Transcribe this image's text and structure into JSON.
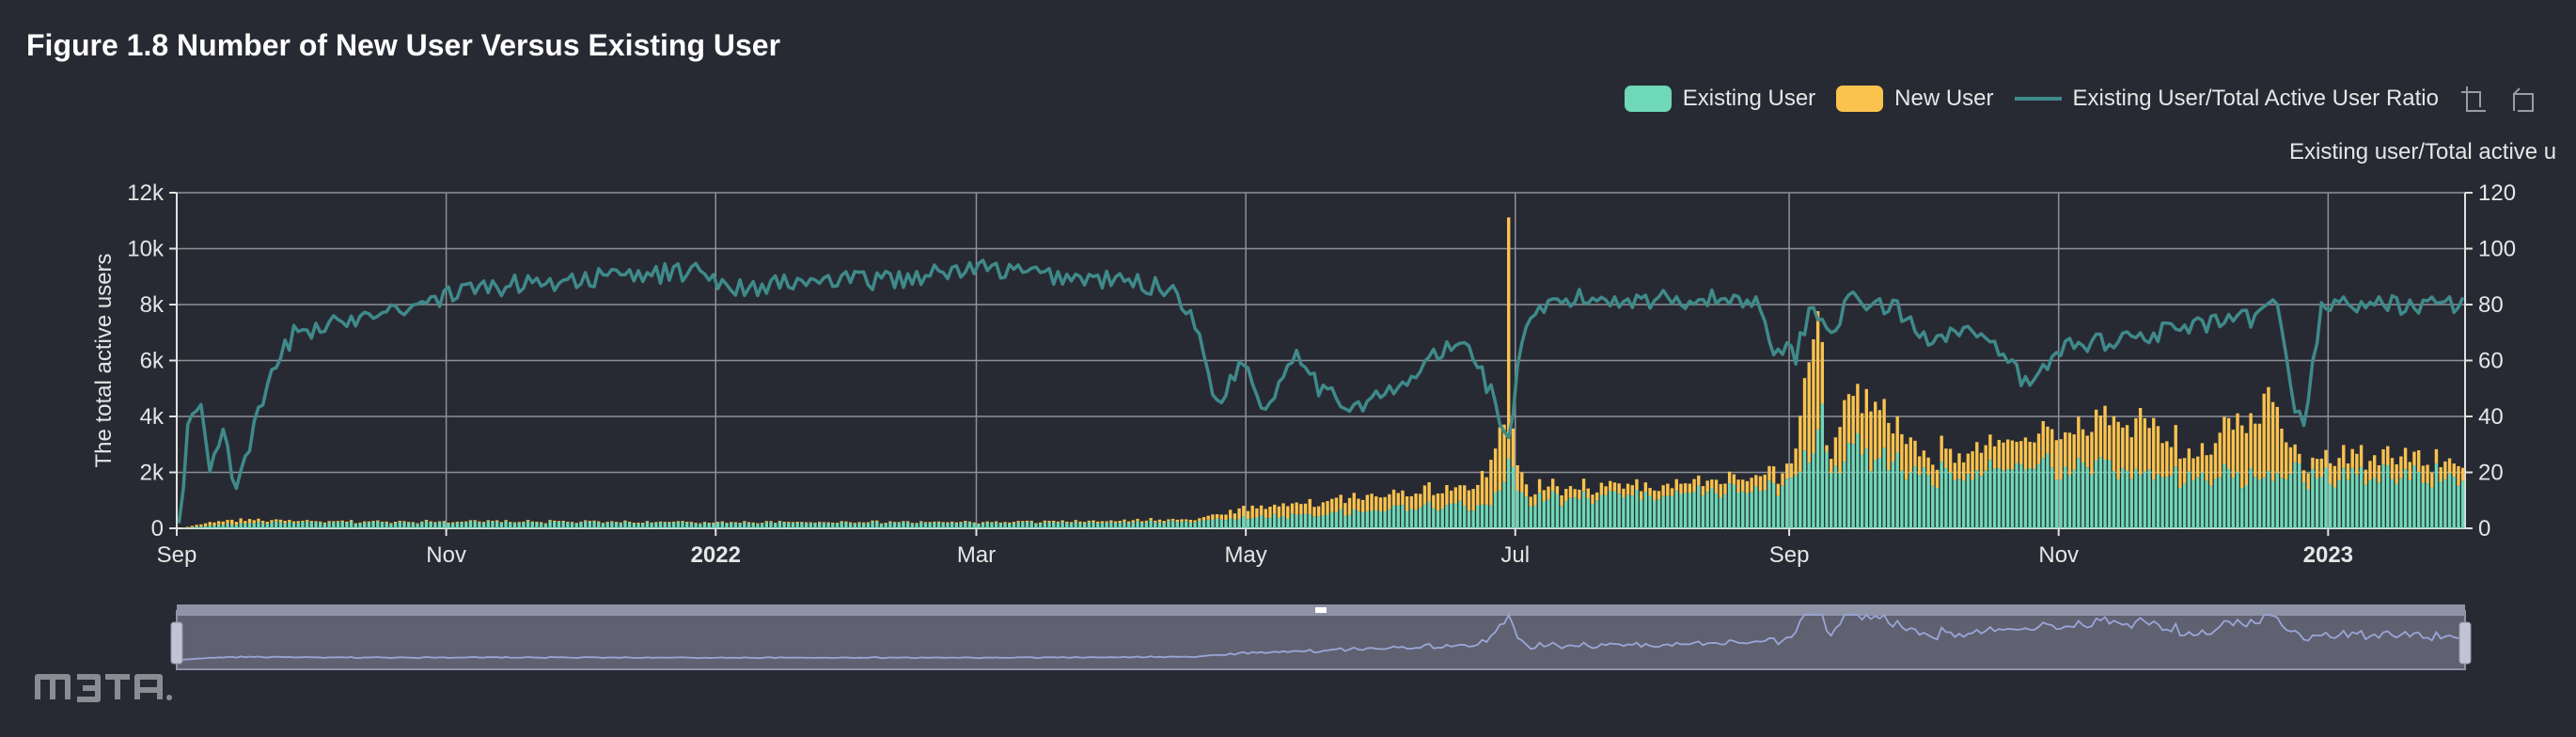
{
  "title": "Figure 1.8 Number of New User Versus Existing User",
  "legend": [
    {
      "label": "Existing User",
      "kind": "bar",
      "color": "#6fd8b6"
    },
    {
      "label": "New User",
      "kind": "bar",
      "color": "#f9c34e"
    },
    {
      "label": "Existing User/Total Active User Ratio",
      "kind": "line",
      "color": "#3f8a8a"
    }
  ],
  "toolbox": [
    "zoom-icon",
    "zoom-reset-icon"
  ],
  "watermark_text": "m3ta",
  "chart_data": {
    "type": "bar",
    "stacked": true,
    "title": "Figure 1.8 Number of New User Versus Existing User",
    "ylabel": "The total active users",
    "ylabel_right": "Existing user/Total active u",
    "ylim": [
      0,
      12000
    ],
    "ylim_right": [
      0,
      120
    ],
    "y_ticks": [
      "0",
      "2k",
      "4k",
      "6k",
      "8k",
      "10k",
      "12k"
    ],
    "y_ticks_right": [
      "0",
      "20",
      "40",
      "60",
      "80",
      "100",
      "120"
    ],
    "x_start": "2021-09-01",
    "x_end": "2023-01-31",
    "x_ticks": [
      {
        "label": "Sep",
        "date": "2021-09-01",
        "bold": false
      },
      {
        "label": "Nov",
        "date": "2021-11-01",
        "bold": false
      },
      {
        "label": "2022",
        "date": "2022-01-01",
        "bold": true
      },
      {
        "label": "Mar",
        "date": "2022-03-01",
        "bold": false
      },
      {
        "label": "May",
        "date": "2022-05-01",
        "bold": false
      },
      {
        "label": "Jul",
        "date": "2022-07-01",
        "bold": false
      },
      {
        "label": "Sep",
        "date": "2022-09-01",
        "bold": false
      },
      {
        "label": "Nov",
        "date": "2022-11-01",
        "bold": false
      },
      {
        "label": "2023",
        "date": "2023-01-01",
        "bold": true
      }
    ],
    "grid": true,
    "legend_position": "top-right",
    "series": [
      {
        "name": "Existing User",
        "type": "bar",
        "axis": "left",
        "color": "#6fd8b6",
        "keypoints": [
          [
            "2021-09-01",
            0
          ],
          [
            "2021-09-05",
            60
          ],
          [
            "2021-09-12",
            150
          ],
          [
            "2021-09-20",
            220
          ],
          [
            "2021-10-01",
            210
          ],
          [
            "2021-11-01",
            230
          ],
          [
            "2021-12-01",
            220
          ],
          [
            "2022-01-01",
            200
          ],
          [
            "2022-02-01",
            210
          ],
          [
            "2022-03-01",
            200
          ],
          [
            "2022-04-01",
            210
          ],
          [
            "2022-04-20",
            280
          ],
          [
            "2022-05-01",
            400
          ],
          [
            "2022-05-20",
            550
          ],
          [
            "2022-06-10",
            800
          ],
          [
            "2022-06-25",
            900
          ],
          [
            "2022-06-29",
            2600
          ],
          [
            "2022-06-30",
            2000
          ],
          [
            "2022-07-02",
            1100
          ],
          [
            "2022-08-01",
            1250
          ],
          [
            "2022-08-25",
            1450
          ],
          [
            "2022-09-01",
            1600
          ],
          [
            "2022-09-08",
            3800
          ],
          [
            "2022-09-10",
            1700
          ],
          [
            "2022-09-14",
            3000
          ],
          [
            "2022-10-01",
            2000
          ],
          [
            "2022-11-01",
            2300
          ],
          [
            "2022-12-01",
            2000
          ],
          [
            "2022-12-20",
            2100
          ],
          [
            "2023-01-01",
            1900
          ],
          [
            "2023-01-31",
            2000
          ]
        ]
      },
      {
        "name": "New User",
        "type": "bar",
        "axis": "left",
        "color": "#f9c34e",
        "keypoints": [
          [
            "2021-09-01",
            0
          ],
          [
            "2021-09-06",
            80
          ],
          [
            "2021-09-12",
            150
          ],
          [
            "2021-10-01",
            40
          ],
          [
            "2021-11-01",
            30
          ],
          [
            "2022-01-01",
            30
          ],
          [
            "2022-03-01",
            30
          ],
          [
            "2022-04-20",
            80
          ],
          [
            "2022-05-01",
            350
          ],
          [
            "2022-06-01",
            550
          ],
          [
            "2022-06-20",
            600
          ],
          [
            "2022-06-28",
            2000
          ],
          [
            "2022-06-29",
            8600
          ],
          [
            "2022-06-30",
            1400
          ],
          [
            "2022-07-03",
            400
          ],
          [
            "2022-08-01",
            350
          ],
          [
            "2022-08-25",
            450
          ],
          [
            "2022-09-01",
            600
          ],
          [
            "2022-09-07",
            4600
          ],
          [
            "2022-09-09",
            300
          ],
          [
            "2022-09-14",
            2200
          ],
          [
            "2022-10-01",
            750
          ],
          [
            "2022-10-20",
            900
          ],
          [
            "2022-11-01",
            1200
          ],
          [
            "2022-11-20",
            2000
          ],
          [
            "2022-12-01",
            800
          ],
          [
            "2022-12-18",
            2800
          ],
          [
            "2022-12-25",
            400
          ],
          [
            "2023-01-01",
            700
          ],
          [
            "2023-01-31",
            600
          ]
        ]
      },
      {
        "name": "Existing User/Total Active User Ratio",
        "type": "line",
        "axis": "right",
        "color": "#3f8a8a",
        "keypoints": [
          [
            "2021-09-01",
            0
          ],
          [
            "2021-09-03",
            35
          ],
          [
            "2021-09-06",
            45
          ],
          [
            "2021-09-08",
            20
          ],
          [
            "2021-09-11",
            38
          ],
          [
            "2021-09-14",
            12
          ],
          [
            "2021-09-18",
            35
          ],
          [
            "2021-09-22",
            55
          ],
          [
            "2021-09-27",
            70
          ],
          [
            "2021-10-05",
            72
          ],
          [
            "2021-10-15",
            78
          ],
          [
            "2021-10-25",
            80
          ],
          [
            "2021-11-05",
            85
          ],
          [
            "2021-11-20",
            88
          ],
          [
            "2021-12-10",
            90
          ],
          [
            "2021-12-28",
            92
          ],
          [
            "2022-01-05",
            86
          ],
          [
            "2022-01-20",
            88
          ],
          [
            "2022-02-10",
            89
          ],
          [
            "2022-03-01",
            93
          ],
          [
            "2022-03-20",
            90
          ],
          [
            "2022-04-05",
            88
          ],
          [
            "2022-04-15",
            85
          ],
          [
            "2022-04-20",
            68
          ],
          [
            "2022-04-24",
            45
          ],
          [
            "2022-04-30",
            60
          ],
          [
            "2022-05-05",
            42
          ],
          [
            "2022-05-12",
            65
          ],
          [
            "2022-05-18",
            48
          ],
          [
            "2022-05-25",
            44
          ],
          [
            "2022-06-05",
            50
          ],
          [
            "2022-06-12",
            62
          ],
          [
            "2022-06-20",
            66
          ],
          [
            "2022-06-26",
            45
          ],
          [
            "2022-06-29",
            30
          ],
          [
            "2022-07-02",
            68
          ],
          [
            "2022-07-08",
            80
          ],
          [
            "2022-07-15",
            82
          ],
          [
            "2022-08-01",
            82
          ],
          [
            "2022-08-20",
            82
          ],
          [
            "2022-08-25",
            80
          ],
          [
            "2022-08-28",
            65
          ],
          [
            "2022-09-02",
            62
          ],
          [
            "2022-09-05",
            78
          ],
          [
            "2022-09-10",
            72
          ],
          [
            "2022-09-15",
            82
          ],
          [
            "2022-09-25",
            78
          ],
          [
            "2022-10-01",
            68
          ],
          [
            "2022-10-10",
            72
          ],
          [
            "2022-10-20",
            60
          ],
          [
            "2022-10-25",
            50
          ],
          [
            "2022-11-01",
            65
          ],
          [
            "2022-11-15",
            68
          ],
          [
            "2022-12-01",
            72
          ],
          [
            "2022-12-15",
            75
          ],
          [
            "2022-12-20",
            80
          ],
          [
            "2022-12-24",
            45
          ],
          [
            "2022-12-26",
            35
          ],
          [
            "2022-12-30",
            80
          ],
          [
            "2023-01-10",
            80
          ],
          [
            "2023-01-31",
            80
          ]
        ]
      }
    ]
  }
}
